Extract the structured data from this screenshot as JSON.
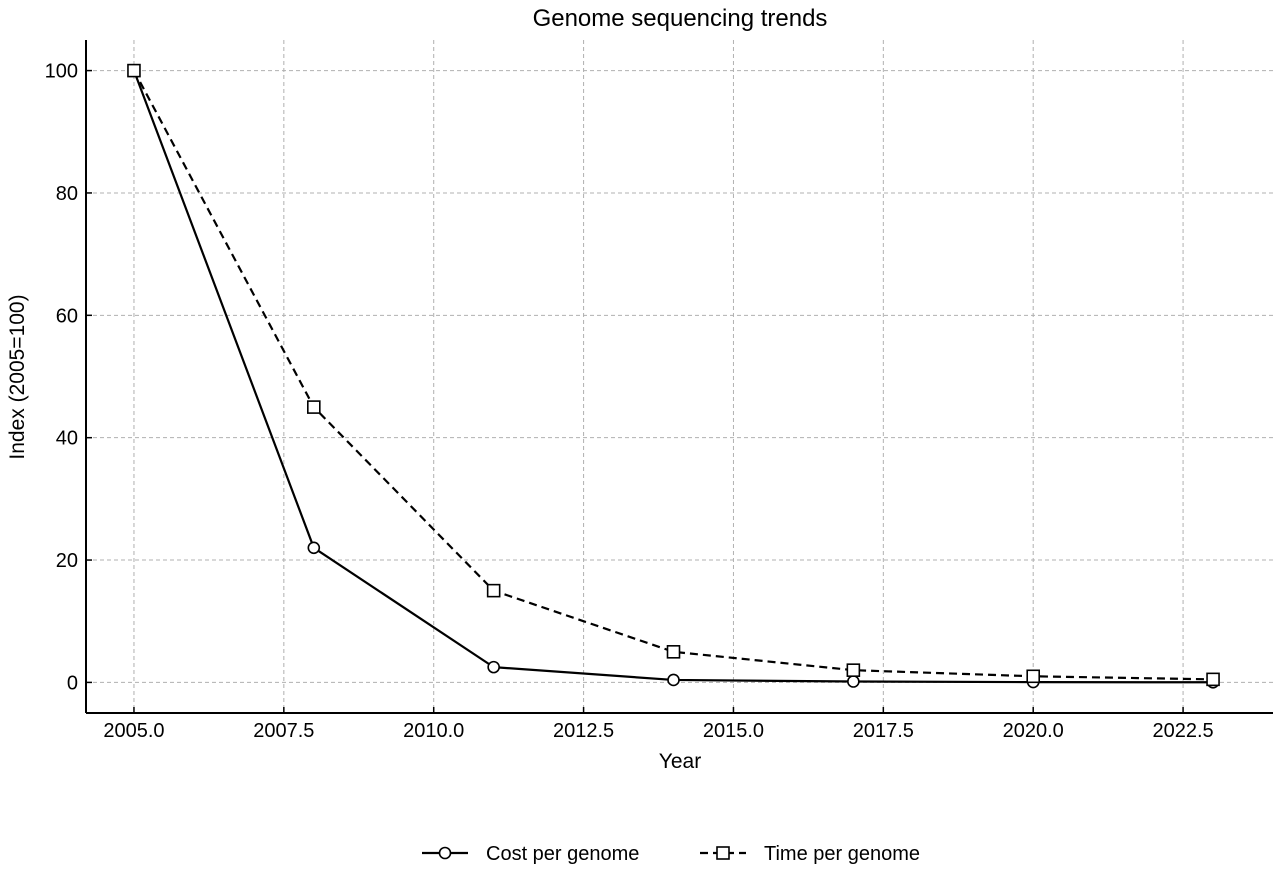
{
  "chart_data": {
    "type": "line",
    "title": "Genome sequencing trends",
    "xlabel": "Year",
    "ylabel": "Index (2005=100)",
    "xlim": [
      2004.2,
      2024.0
    ],
    "ylim": [
      -5,
      105
    ],
    "xticks": [
      2005.0,
      2007.5,
      2010.0,
      2012.5,
      2015.0,
      2017.5,
      2020.0,
      2022.5
    ],
    "xtick_labels": [
      "2005.0",
      "2007.5",
      "2010.0",
      "2012.5",
      "2015.0",
      "2017.5",
      "2020.0",
      "2022.5"
    ],
    "yticks": [
      0,
      20,
      40,
      60,
      80,
      100
    ],
    "ytick_labels": [
      "0",
      "20",
      "40",
      "60",
      "80",
      "100"
    ],
    "grid": true,
    "legend_position": "bottom-center",
    "x": [
      2005,
      2008,
      2011,
      2014,
      2017,
      2020,
      2023
    ],
    "series": [
      {
        "name": "Cost per genome",
        "values": [
          100,
          22,
          2.5,
          0.4,
          0.15,
          0.05,
          0.02
        ],
        "line_style": "solid",
        "marker": "circle",
        "color": "#000000"
      },
      {
        "name": "Time per genome",
        "values": [
          100,
          45,
          15,
          5,
          2,
          1,
          0.5
        ],
        "line_style": "dashed",
        "marker": "square",
        "color": "#000000"
      }
    ]
  }
}
